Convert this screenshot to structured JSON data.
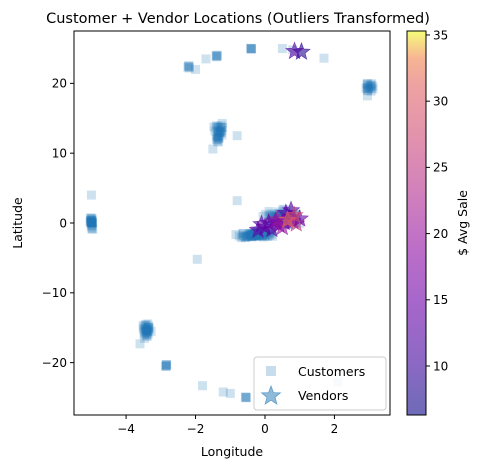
{
  "chart_data": {
    "type": "scatter",
    "title": "Customer + Vendor Locations (Outliers Transformed)",
    "xlabel": "Longitude",
    "ylabel": "Latitude",
    "xlim": [
      -5.5,
      3.6
    ],
    "ylim": [
      -27.5,
      27.5
    ],
    "xticks": [
      {
        "value": -4,
        "label": "−4"
      },
      {
        "value": -2,
        "label": "−2"
      },
      {
        "value": 0,
        "label": "0"
      },
      {
        "value": 2,
        "label": "2"
      }
    ],
    "yticks": [
      {
        "value": -20,
        "label": "−20"
      },
      {
        "value": -10,
        "label": "−10"
      },
      {
        "value": 0,
        "label": "0"
      },
      {
        "value": 10,
        "label": "10"
      },
      {
        "value": 20,
        "label": "20"
      }
    ],
    "grid": false,
    "legend": {
      "location": "lower-right",
      "entries": [
        {
          "label": "Customers",
          "marker": "square",
          "color": "#1f77b4"
        },
        {
          "label": "Vendors",
          "marker": "star",
          "color": "#1f77b4"
        }
      ]
    },
    "colorbar": {
      "label": "$ Avg Sale",
      "colormap": "plasma",
      "range": [
        6.3,
        35.3
      ],
      "ticks": [
        {
          "value": 10,
          "label": "10"
        },
        {
          "value": 15,
          "label": "15"
        },
        {
          "value": 20,
          "label": "20"
        },
        {
          "value": 25,
          "label": "25"
        },
        {
          "value": 30,
          "label": "30"
        },
        {
          "value": 35,
          "label": "35"
        }
      ]
    },
    "series": [
      {
        "name": "Customers",
        "marker": "square",
        "color": "#1f77b4",
        "clusters": [
          {
            "x": -5.0,
            "y": 0.0,
            "dx": 0.06,
            "dy": 1.6,
            "n": 26
          },
          {
            "x": -3.4,
            "y": -15.3,
            "dx": 0.2,
            "dy": 1.6,
            "n": 30
          },
          {
            "x": -2.85,
            "y": -20.4,
            "dx": 0.06,
            "dy": 0.3,
            "n": 6
          },
          {
            "x": -1.35,
            "y": 13.0,
            "dx": 0.2,
            "dy": 2.3,
            "n": 32
          },
          {
            "x": -2.2,
            "y": 22.3,
            "dx": 0.05,
            "dy": 0.3,
            "n": 5
          },
          {
            "x": -1.4,
            "y": 23.9,
            "dx": 0.06,
            "dy": 0.3,
            "n": 5
          },
          {
            "x": -0.4,
            "y": 25.0,
            "dx": 0.05,
            "dy": 0.2,
            "n": 5
          },
          {
            "x": 3.0,
            "y": 19.5,
            "dx": 0.18,
            "dy": 1.0,
            "n": 18
          },
          {
            "x": -0.55,
            "y": -25.0,
            "dx": 0.06,
            "dy": 0.15,
            "n": 4
          },
          {
            "x": -0.3,
            "y": -1.6,
            "dx": 0.75,
            "dy": 0.7,
            "n": 70
          },
          {
            "x": 0.45,
            "y": 0.8,
            "dx": 0.7,
            "dy": 1.5,
            "n": 80
          }
        ],
        "points": [
          {
            "x": -5.0,
            "y": 4.0
          },
          {
            "x": -1.95,
            "y": -5.2
          },
          {
            "x": -0.8,
            "y": 3.2
          },
          {
            "x": -0.8,
            "y": 12.5
          },
          {
            "x": -1.7,
            "y": 23.5
          },
          {
            "x": 0.5,
            "y": 25.0
          },
          {
            "x": 0.8,
            "y": 24.8
          },
          {
            "x": 1.7,
            "y": 23.6
          },
          {
            "x": 2.1,
            "y": -22.8
          },
          {
            "x": -1.8,
            "y": -23.3
          },
          {
            "x": -1.2,
            "y": -24.2
          },
          {
            "x": -1.0,
            "y": -24.4
          },
          {
            "x": -3.6,
            "y": -17.3
          },
          {
            "x": 2.95,
            "y": 18.2
          },
          {
            "x": -1.5,
            "y": 10.6
          },
          {
            "x": -2.0,
            "y": 22.0
          }
        ]
      },
      {
        "name": "Vendors",
        "marker": "star",
        "color_by": "$ Avg Sale",
        "points": [
          {
            "x": 1.05,
            "y": 24.5,
            "v": 8
          },
          {
            "x": 0.85,
            "y": 24.6,
            "v": 12
          },
          {
            "x": 0.0,
            "y": -0.6,
            "v": 13
          },
          {
            "x": -0.2,
            "y": -1.0,
            "v": 14
          },
          {
            "x": 0.2,
            "y": -0.9,
            "v": 13
          },
          {
            "x": 0.4,
            "y": -0.3,
            "v": 16
          },
          {
            "x": 0.55,
            "y": 0.1,
            "v": 15
          },
          {
            "x": 0.7,
            "y": 0.8,
            "v": 19
          },
          {
            "x": 0.8,
            "y": 0.2,
            "v": 17
          },
          {
            "x": 0.6,
            "y": 1.4,
            "v": 14
          },
          {
            "x": 0.9,
            "y": -0.1,
            "v": 25
          },
          {
            "x": 0.35,
            "y": 0.5,
            "v": 22
          },
          {
            "x": 0.1,
            "y": 0.0,
            "v": 14
          },
          {
            "x": 0.75,
            "y": 1.8,
            "v": 12
          },
          {
            "x": 1.0,
            "y": 0.6,
            "v": 15
          },
          {
            "x": -0.1,
            "y": -0.2,
            "v": 13
          },
          {
            "x": 0.5,
            "y": -0.6,
            "v": 20
          },
          {
            "x": 0.65,
            "y": 0.4,
            "v": 32
          },
          {
            "x": 0.3,
            "y": 0.2,
            "v": 18
          },
          {
            "x": 0.85,
            "y": 1.1,
            "v": 28
          }
        ]
      }
    ]
  }
}
